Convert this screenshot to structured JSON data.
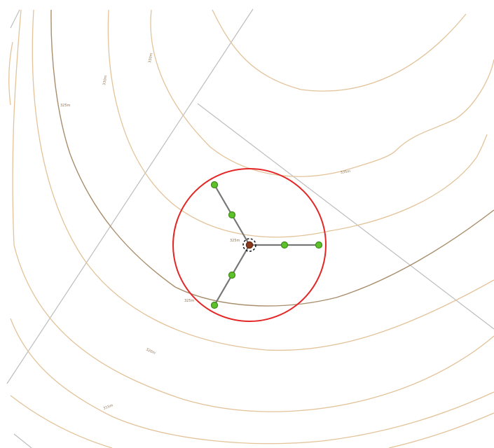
{
  "map": {
    "contour_labels": {
      "c1": "325m",
      "c2": "330m",
      "c3": "330m",
      "c4": "335m",
      "c5": "325m",
      "c6": "325m",
      "c7": "320m",
      "c8": "315m",
      "c9": "335m"
    },
    "colors": {
      "contour": "#e3c39a",
      "index_contour": "#a88e6c",
      "road": "#bdbdbd",
      "radius_circle": "#e32626",
      "sensor": "#5ec12c",
      "arm": "#777777"
    }
  }
}
